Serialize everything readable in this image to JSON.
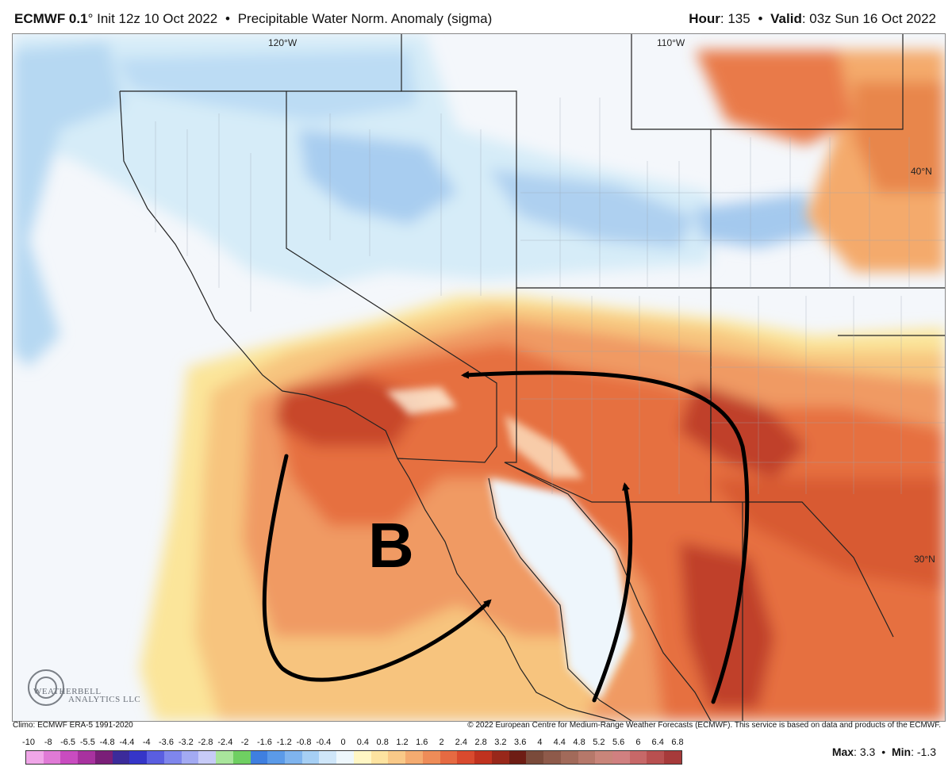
{
  "header": {
    "model": "ECMWF 0.1",
    "degree": "°",
    "init_label": "Init 12z 10 Oct 2022",
    "bullet": "•",
    "product": "Precipitable Water Norm. Anomaly (sigma)",
    "hour_label": "Hour",
    "hour_value": ": 135",
    "valid_label": "Valid",
    "valid_value": ": 03z Sun 16 Oct 2022"
  },
  "map": {
    "lon_labels": [
      "120°W",
      "110°W"
    ],
    "lat_labels": [
      "40°N",
      "30°N"
    ],
    "annotation_letter": "B",
    "logo_text": "WEATHERBELL",
    "logo_sub": "ANALYTICS LLC"
  },
  "footer": {
    "climo": "Climo: ECMWF ERA-5 1991-2020",
    "copyright": "© 2022 European Centre for Medium-Range Weather Forecasts (ECMWF). This service is based on data and products of the ECMWF."
  },
  "colorbar": {
    "ticks": [
      "-10",
      "-8",
      "-6.5",
      "-5.5",
      "-4.8",
      "-4.4",
      "-4",
      "-3.6",
      "-3.2",
      "-2.8",
      "-2.4",
      "-2",
      "-1.6",
      "-1.2",
      "-0.8",
      "-0.4",
      "0",
      "0.4",
      "0.8",
      "1.2",
      "1.6",
      "2",
      "2.4",
      "2.8",
      "3.2",
      "3.6",
      "4",
      "4.4",
      "4.8",
      "5.2",
      "5.6",
      "6",
      "6.4",
      "6.8"
    ],
    "colors": [
      "#f0a6e8",
      "#e07ad6",
      "#c94cc0",
      "#a8329f",
      "#7a1f78",
      "#3b2b9a",
      "#3535c8",
      "#5a5ee0",
      "#7f86ec",
      "#a3aaf2",
      "#c7cbf7",
      "#a9e59c",
      "#6fcf62",
      "#3f7fe0",
      "#5b9ae8",
      "#7fb4ee",
      "#a6cff4",
      "#cfe6f9",
      "#eef7fc",
      "#fff6c4",
      "#fde3a0",
      "#f9c988",
      "#f4ab70",
      "#ee8c58",
      "#e66a42",
      "#d94a2e",
      "#c0321f",
      "#98271a",
      "#6e1d14",
      "#7a4a3a",
      "#8e5a4a",
      "#a26a5a",
      "#b6786a",
      "#c9857a",
      "#d08080",
      "#c76868",
      "#b85050",
      "#a63a3a"
    ]
  },
  "stats": {
    "max_label": "Max",
    "max_value": ": 3.3",
    "min_label": "Min",
    "min_value": ": -1.3",
    "bullet": "•"
  }
}
